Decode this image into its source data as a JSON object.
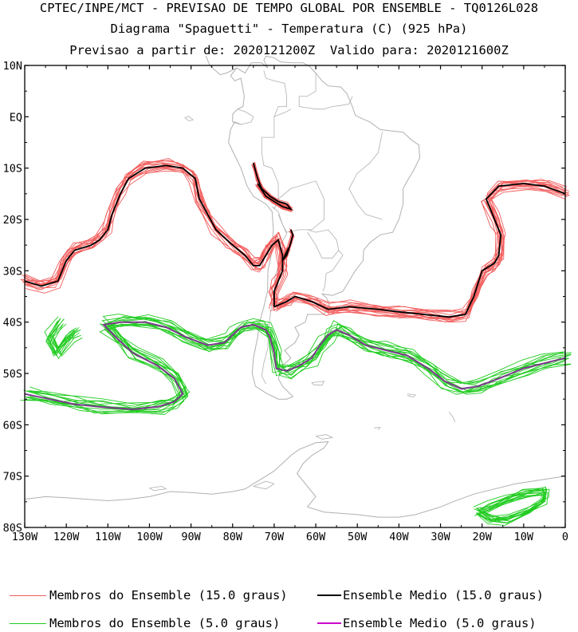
{
  "titles": {
    "line1": "CPTEC/INPE/MCT - PREVISAO DE TEMPO GLOBAL POR ENSEMBLE - TQ0126L028",
    "line2": "Diagrama \"Spaguetti\" - Temperatura (C) (925 hPa)",
    "line3": "Previsao a partir de: 2020121200Z  Valido para: 2020121600Z"
  },
  "axes": {
    "lat_labels": [
      "10N",
      "EQ",
      "10S",
      "20S",
      "30S",
      "40S",
      "50S",
      "60S",
      "70S",
      "80S"
    ],
    "lon_labels": [
      "130W",
      "120W",
      "110W",
      "100W",
      "90W",
      "80W",
      "70W",
      "60W",
      "50W",
      "40W",
      "30W",
      "20W",
      "10W",
      "0"
    ],
    "lat_range": [
      10,
      -80
    ],
    "lon_range": [
      -130,
      0
    ]
  },
  "colors": {
    "member_15": "#f25c5c",
    "mean_15": "#000000",
    "member_5": "#22cc22",
    "mean_5": "#7a3a8a",
    "coast": "#b0b0b0"
  },
  "legend": {
    "member_15": "Membros do Ensemble (15.0 graus)",
    "mean_15": "Ensemble Medio (15.0 graus)",
    "member_5": "Membros do Ensemble (5.0 graus)",
    "mean_5": "Ensemble Medio (5.0 graus)"
  },
  "isotherm_15": {
    "west": [
      [
        -130,
        -32
      ],
      [
        -126,
        -33
      ],
      [
        -122,
        -32
      ],
      [
        -120,
        -28
      ],
      [
        -118,
        -26
      ],
      [
        -114,
        -25
      ],
      [
        -112,
        -24
      ],
      [
        -110,
        -22
      ],
      [
        -109,
        -19
      ],
      [
        -107,
        -15
      ],
      [
        -105,
        -12
      ],
      [
        -101,
        -10
      ],
      [
        -96,
        -9.5
      ],
      [
        -92,
        -10
      ],
      [
        -89,
        -12
      ],
      [
        -88,
        -16
      ],
      [
        -86,
        -19
      ],
      [
        -84,
        -22
      ],
      [
        -80,
        -25
      ],
      [
        -77,
        -27
      ],
      [
        -75,
        -29
      ],
      [
        -73.5,
        -29
      ],
      [
        -72,
        -27
      ],
      [
        -70.5,
        -25
      ],
      [
        -69,
        -24
      ],
      [
        -68,
        -27
      ],
      [
        -68,
        -30
      ],
      [
        -69,
        -32
      ],
      [
        -70,
        -34
      ],
      [
        -70,
        -36
      ],
      [
        -70,
        -37
      ]
    ],
    "andes_north": [
      [
        -75,
        -9
      ],
      [
        -74,
        -12
      ],
      [
        -73,
        -14
      ],
      [
        -71,
        -15.5
      ],
      [
        -69,
        -16.5
      ],
      [
        -67,
        -17
      ],
      [
        -66,
        -18
      ],
      [
        -68,
        -17.5
      ],
      [
        -70,
        -16.5
      ],
      [
        -72,
        -15.5
      ],
      [
        -74,
        -13
      ]
    ],
    "andes_south": [
      [
        -66,
        -22
      ],
      [
        -65.5,
        -23
      ],
      [
        -66,
        -24.5
      ],
      [
        -67,
        -27
      ],
      [
        -68,
        -28
      ],
      [
        -66.5,
        -25.5
      ]
    ],
    "east": [
      [
        -70,
        -37
      ],
      [
        -67,
        -36
      ],
      [
        -65,
        -35
      ],
      [
        -61,
        -36
      ],
      [
        -57,
        -37.5
      ],
      [
        -52,
        -37
      ],
      [
        -45,
        -37.5
      ],
      [
        -40,
        -38
      ],
      [
        -34,
        -38.5
      ],
      [
        -28,
        -39
      ],
      [
        -24,
        -38.5
      ],
      [
        -22,
        -35
      ],
      [
        -20,
        -30
      ],
      [
        -17,
        -28.5
      ],
      [
        -16,
        -27
      ],
      [
        -15.5,
        -23
      ],
      [
        -17,
        -20
      ],
      [
        -19,
        -16
      ],
      [
        -16,
        -13.5
      ],
      [
        -10,
        -13
      ],
      [
        -5,
        -13.5
      ],
      [
        0,
        -15
      ]
    ]
  },
  "isotherm_5": {
    "west_loop": [
      [
        -130,
        -54
      ],
      [
        -124,
        -55
      ],
      [
        -118,
        -56
      ],
      [
        -112,
        -56.5
      ],
      [
        -104,
        -57
      ],
      [
        -98,
        -56.5
      ],
      [
        -94,
        -55.5
      ],
      [
        -92,
        -54
      ],
      [
        -94,
        -51
      ],
      [
        -98,
        -48.5
      ],
      [
        -104,
        -46
      ],
      [
        -108,
        -43
      ],
      [
        -111,
        -40.5
      ],
      [
        -107,
        -40
      ],
      [
        -101,
        -40
      ],
      [
        -96,
        -41
      ],
      [
        -91,
        -43
      ],
      [
        -86,
        -44.5
      ],
      [
        -82,
        -44
      ],
      [
        -80,
        -42.5
      ],
      [
        -78,
        -41
      ],
      [
        -75,
        -40.5
      ],
      [
        -72,
        -41.5
      ],
      [
        -71,
        -43
      ],
      [
        -70,
        -46
      ],
      [
        -69.5,
        -49
      ],
      [
        -67,
        -49.5
      ],
      [
        -64,
        -48.5
      ],
      [
        -61,
        -47
      ],
      [
        -59,
        -44.5
      ],
      [
        -57,
        -42.5
      ],
      [
        -55,
        -41.5
      ],
      [
        -52,
        -42.5
      ],
      [
        -48,
        -44.5
      ],
      [
        -43,
        -45.5
      ],
      [
        -38,
        -46.5
      ],
      [
        -33,
        -49
      ],
      [
        -29,
        -51.5
      ],
      [
        -25,
        -53
      ],
      [
        -21,
        -52.5
      ],
      [
        -16,
        -51
      ],
      [
        -10,
        -49
      ],
      [
        -5,
        -48
      ],
      [
        0,
        -47
      ]
    ],
    "antarctic_blob": [
      [
        -21,
        -77
      ],
      [
        -18,
        -76
      ],
      [
        -14,
        -74.5
      ],
      [
        -10,
        -73.5
      ],
      [
        -5,
        -73
      ],
      [
        -5,
        -75
      ],
      [
        -9,
        -77
      ],
      [
        -14,
        -78.5
      ],
      [
        -18,
        -78.5
      ],
      [
        -21,
        -77
      ]
    ],
    "west_extra": [
      [
        -121,
        -40
      ],
      [
        -124,
        -43
      ],
      [
        -122,
        -46
      ],
      [
        -119,
        -43
      ],
      [
        -117,
        -42
      ]
    ]
  },
  "coastlines": {
    "south_america": [
      [
        -78,
        -1.5
      ],
      [
        -79.5,
        -1
      ],
      [
        -80.5,
        -2.5
      ],
      [
        -81,
        -5
      ],
      [
        -79.5,
        -7.5
      ],
      [
        -78,
        -10
      ],
      [
        -76.5,
        -13.5
      ],
      [
        -75,
        -15.5
      ],
      [
        -72,
        -17
      ],
      [
        -70.5,
        -18.5
      ],
      [
        -70.2,
        -22
      ],
      [
        -70.5,
        -26
      ],
      [
        -71.5,
        -30
      ],
      [
        -71.6,
        -34
      ],
      [
        -72.5,
        -37
      ],
      [
        -73.5,
        -40
      ],
      [
        -74,
        -43
      ],
      [
        -75,
        -47
      ],
      [
        -75.3,
        -50
      ],
      [
        -74.5,
        -52.5
      ],
      [
        -72,
        -53.8
      ],
      [
        -69,
        -55
      ],
      [
        -67,
        -55
      ],
      [
        -65.5,
        -54.5
      ],
      [
        -68,
        -52.5
      ],
      [
        -69,
        -51
      ],
      [
        -68,
        -48.5
      ],
      [
        -66,
        -47
      ],
      [
        -67.5,
        -45.5
      ],
      [
        -65,
        -44
      ],
      [
        -64,
        -42.5
      ],
      [
        -65,
        -41
      ],
      [
        -62.5,
        -40
      ],
      [
        -62,
        -38.5
      ],
      [
        -58,
        -38.5
      ],
      [
        -56.7,
        -36.5
      ],
      [
        -57.5,
        -35.2
      ],
      [
        -58.5,
        -34.5
      ],
      [
        -56,
        -34.8
      ],
      [
        -53.5,
        -34
      ],
      [
        -52,
        -32
      ],
      [
        -50.5,
        -30
      ],
      [
        -48.6,
        -28
      ],
      [
        -48.5,
        -26
      ],
      [
        -47,
        -24.5
      ],
      [
        -44.5,
        -23
      ],
      [
        -41.5,
        -22.5
      ],
      [
        -40,
        -20
      ],
      [
        -39,
        -17
      ],
      [
        -39,
        -14
      ],
      [
        -38,
        -12.5
      ],
      [
        -36.5,
        -10.5
      ],
      [
        -35,
        -8
      ],
      [
        -35.2,
        -5.5
      ],
      [
        -37,
        -4.5
      ],
      [
        -39,
        -3
      ],
      [
        -41.5,
        -2.8
      ],
      [
        -44.5,
        -2.5
      ],
      [
        -47,
        -1
      ],
      [
        -49,
        -0.3
      ],
      [
        -50.5,
        0.3
      ],
      [
        -51.2,
        2
      ],
      [
        -52.5,
        4.5
      ],
      [
        -54,
        5.8
      ],
      [
        -57,
        6
      ],
      [
        -58.5,
        7
      ],
      [
        -60,
        8.5
      ],
      [
        -61.5,
        9.8
      ],
      [
        -63,
        10.5
      ],
      [
        -66,
        10.5
      ],
      [
        -68.5,
        10.7
      ],
      [
        -70,
        11.5
      ],
      [
        -72,
        11.8
      ],
      [
        -72.5,
        11
      ],
      [
        -71.5,
        9.5
      ],
      [
        -73,
        10.5
      ],
      [
        -75.5,
        10.5
      ],
      [
        -77,
        8.5
      ],
      [
        -79,
        9.5
      ],
      [
        -80.5,
        8
      ],
      [
        -79.5,
        7
      ],
      [
        -78,
        7.5
      ],
      [
        -77.2,
        4
      ],
      [
        -77.5,
        2
      ],
      [
        -78.8,
        1.5
      ],
      [
        -80,
        0.5
      ],
      [
        -80,
        -1
      ],
      [
        -78,
        -1.5
      ]
    ],
    "central_america": [
      [
        -79,
        9.5
      ],
      [
        -81.5,
        8.5
      ],
      [
        -83,
        8.2
      ],
      [
        -85.5,
        10
      ],
      [
        -86.5,
        12
      ],
      [
        -87.5,
        13
      ],
      [
        -89,
        13.5
      ],
      [
        -91,
        14
      ],
      [
        -92.5,
        15
      ],
      [
        -94,
        16
      ],
      [
        -95.5,
        16
      ],
      [
        -97,
        16
      ],
      [
        -97.5,
        17
      ]
    ],
    "borders": [
      [
        [
          -70,
          -18
        ],
        [
          -69,
          -16
        ],
        [
          -69,
          -13
        ],
        [
          -70.5,
          -10
        ],
        [
          -72.5,
          -9.5
        ],
        [
          -73,
          -7
        ],
        [
          -73,
          -4
        ],
        [
          -70,
          -4
        ],
        [
          -70,
          0
        ],
        [
          -67,
          1
        ],
        [
          -66,
          1.5
        ]
      ],
      [
        [
          -69,
          -16
        ],
        [
          -66,
          -14
        ],
        [
          -62,
          -13
        ],
        [
          -60,
          -12.5
        ],
        [
          -58,
          -16
        ],
        [
          -58,
          -20
        ],
        [
          -61,
          -22
        ],
        [
          -64,
          -22
        ],
        [
          -67,
          -22.5
        ],
        [
          -68,
          -21
        ],
        [
          -69,
          -19
        ]
      ],
      [
        [
          -62,
          -22
        ],
        [
          -60,
          -22.5
        ],
        [
          -57,
          -22
        ],
        [
          -55,
          -24
        ],
        [
          -54.5,
          -26
        ],
        [
          -56,
          -27.5
        ],
        [
          -58.5,
          -27.5
        ],
        [
          -60,
          -25
        ],
        [
          -62,
          -22.5
        ]
      ],
      [
        [
          -54.5,
          -26
        ],
        [
          -53.5,
          -27
        ],
        [
          -56,
          -30
        ],
        [
          -57.5,
          -30.5
        ],
        [
          -57.8,
          -33
        ],
        [
          -58.3,
          -34
        ]
      ],
      [
        [
          -80,
          -1
        ],
        [
          -78,
          -1.5
        ],
        [
          -75.5,
          -1
        ],
        [
          -75,
          0
        ],
        [
          -77,
          1
        ],
        [
          -78.8,
          1.5
        ]
      ],
      [
        [
          -70,
          0
        ],
        [
          -69,
          2
        ],
        [
          -67,
          2
        ],
        [
          -67,
          4
        ],
        [
          -67.5,
          6.5
        ],
        [
          -70,
          7
        ],
        [
          -72,
          7.5
        ],
        [
          -72.5,
          9
        ]
      ],
      [
        [
          -60,
          8.5
        ],
        [
          -60,
          5
        ],
        [
          -62,
          4
        ],
        [
          -64,
          4
        ],
        [
          -64,
          2
        ],
        [
          -60,
          1.5
        ],
        [
          -58,
          1.5
        ],
        [
          -56,
          2
        ],
        [
          -54,
          2.2
        ],
        [
          -52,
          2.5
        ],
        [
          -51.2,
          4
        ]
      ],
      [
        [
          -70.5,
          -17.5
        ],
        [
          -69,
          -18.5
        ],
        [
          -68,
          -21
        ],
        [
          -67,
          -22.8
        ],
        [
          -68.5,
          -25
        ],
        [
          -68.5,
          -28
        ],
        [
          -69.8,
          -31
        ],
        [
          -70,
          -34
        ],
        [
          -70.5,
          -36
        ],
        [
          -71,
          -39
        ],
        [
          -71.5,
          -42
        ],
        [
          -71.5,
          -45
        ],
        [
          -72.5,
          -48
        ],
        [
          -73,
          -50.5
        ],
        [
          -72,
          -52
        ]
      ],
      [
        [
          -44,
          -3
        ],
        [
          -45,
          -7
        ],
        [
          -47,
          -9
        ],
        [
          -50,
          -11
        ],
        [
          -52,
          -14
        ],
        [
          -50,
          -17
        ],
        [
          -48,
          -19
        ],
        [
          -44,
          -20
        ]
      ]
    ],
    "islands": [
      [
        [
          -91.5,
          -0.2
        ],
        [
          -90.5,
          -0.8
        ],
        [
          -89.5,
          -0.6
        ],
        [
          -90.5,
          0.1
        ],
        [
          -91.5,
          -0.2
        ]
      ],
      [
        [
          -61,
          -51.8
        ],
        [
          -58,
          -51.5
        ],
        [
          -58.5,
          -52.3
        ],
        [
          -60.5,
          -52.2
        ],
        [
          -61,
          -51.8
        ]
      ],
      [
        [
          -38,
          -54
        ],
        [
          -36,
          -54.2
        ],
        [
          -36.5,
          -54.6
        ],
        [
          -38,
          -54.3
        ]
      ],
      [
        [
          -28,
          -57.5
        ],
        [
          -27,
          -58.5
        ],
        [
          -26.5,
          -59.5
        ]
      ]
    ],
    "antarctica": [
      [
        -130,
        -74.5
      ],
      [
        -125,
        -74
      ],
      [
        -120,
        -74.2
      ],
      [
        -115,
        -74.5
      ],
      [
        -110,
        -74.8
      ],
      [
        -105,
        -74.5
      ],
      [
        -100,
        -74
      ],
      [
        -95,
        -73
      ],
      [
        -90,
        -73.2
      ],
      [
        -85,
        -73.5
      ],
      [
        -80,
        -73
      ],
      [
        -77,
        -72.5
      ],
      [
        -74,
        -71
      ],
      [
        -72,
        -70
      ],
      [
        -70,
        -69
      ],
      [
        -68,
        -67.5
      ],
      [
        -66,
        -66
      ],
      [
        -64,
        -64.8
      ],
      [
        -60,
        -63.5
      ],
      [
        -57,
        -63.3
      ],
      [
        -58,
        -64.5
      ],
      [
        -61,
        -66
      ],
      [
        -63,
        -67.5
      ],
      [
        -64.5,
        -69.5
      ],
      [
        -62,
        -72
      ],
      [
        -60,
        -74
      ],
      [
        -62,
        -76
      ],
      [
        -58,
        -77
      ],
      [
        -50,
        -77.5
      ],
      [
        -45,
        -78
      ],
      [
        -40,
        -78
      ],
      [
        -36,
        -77.5
      ],
      [
        -30,
        -76
      ],
      [
        -27,
        -75
      ],
      [
        -22,
        -73.5
      ],
      [
        -17,
        -72.5
      ],
      [
        -12,
        -71.5
      ],
      [
        -8,
        -71
      ],
      [
        -4,
        -70.5
      ],
      [
        0,
        -70
      ]
    ],
    "antarctic_islands": [
      [
        [
          -75,
          -72
        ],
        [
          -72,
          -71
        ],
        [
          -70,
          -71.5
        ],
        [
          -72,
          -72.5
        ],
        [
          -75,
          -72
        ]
      ],
      [
        [
          -100,
          -72.3
        ],
        [
          -97,
          -72
        ],
        [
          -96,
          -72.5
        ],
        [
          -99,
          -72.8
        ],
        [
          -100,
          -72.3
        ]
      ],
      [
        [
          -60,
          -62.2
        ],
        [
          -57.5,
          -61.9
        ],
        [
          -56,
          -62.5
        ],
        [
          -58.5,
          -62.8
        ],
        [
          -60,
          -62.2
        ]
      ],
      [
        [
          -46,
          -60.6
        ],
        [
          -44.5,
          -60.5
        ],
        [
          -45,
          -61
        ]
      ]
    ]
  }
}
